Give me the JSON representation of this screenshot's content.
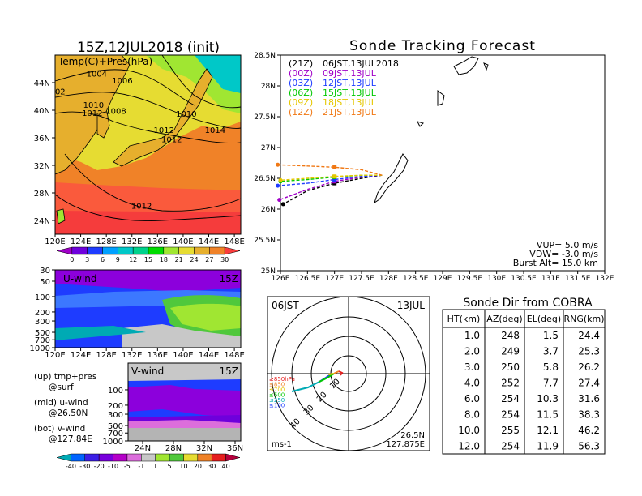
{
  "left_map": {
    "title": "15Z,12JUL2018 (init)",
    "field_label": "Temp(C)+Pres(hPa)",
    "lon_ticks": [
      "120E",
      "124E",
      "128E",
      "132E",
      "136E",
      "140E",
      "144E",
      "148E"
    ],
    "lat_ticks": [
      "24N",
      "28N",
      "32N",
      "36N",
      "40N",
      "44N"
    ],
    "isobar_labels": [
      {
        "text": "1004",
        "lon": 126.5,
        "lat": 45.0
      },
      {
        "text": "1006",
        "lon": 130.5,
        "lat": 44.0
      },
      {
        "text": "02",
        "lon": 120.8,
        "lat": 42.4
      },
      {
        "text": "1010",
        "lon": 126.0,
        "lat": 40.5
      },
      {
        "text": "1012",
        "lon": 125.8,
        "lat": 39.3
      },
      {
        "text": "1008",
        "lon": 129.5,
        "lat": 39.6
      },
      {
        "text": "1010",
        "lon": 140.5,
        "lat": 39.2
      },
      {
        "text": "1014",
        "lon": 145.0,
        "lat": 36.8
      },
      {
        "text": "1012",
        "lon": 137.0,
        "lat": 36.8
      },
      {
        "text": "1012",
        "lon": 138.2,
        "lat": 35.5
      },
      {
        "text": "1012",
        "lon": 133.5,
        "lat": 25.8
      }
    ],
    "colorbar_ticks": [
      "0",
      "3",
      "6",
      "9",
      "12",
      "15",
      "18",
      "21",
      "24",
      "27",
      "30"
    ],
    "colors": [
      "#a000c8",
      "#6e00dc",
      "#1e3cff",
      "#00a0ff",
      "#00c8c8",
      "#00d28c",
      "#00dc00",
      "#a0e632",
      "#e6dc32",
      "#e6af2d",
      "#f08228",
      "#fa3c3c"
    ]
  },
  "u_panel": {
    "label": "U-wind",
    "time": "15Z",
    "pres_ticks": [
      "30",
      "50",
      "100",
      "200",
      "300",
      "500",
      "700",
      "1000"
    ],
    "lon_ticks": [
      "120E",
      "124E",
      "128E",
      "132E",
      "136E",
      "140E",
      "144E",
      "148E"
    ]
  },
  "v_panel": {
    "label": "V-wind",
    "time": "15Z",
    "pres_ticks": [
      "100",
      "200",
      "300",
      "500",
      "700",
      "1000"
    ],
    "lat_ticks": [
      "24N",
      "28N",
      "32N",
      "36N"
    ]
  },
  "legend_notes": {
    "up": "(up) tmp+pres",
    "up2": "@surf",
    "mid": "(mid) u-wind",
    "mid2": "@26.50N",
    "bot": "(bot) v-wind",
    "bot2": "@127.84E"
  },
  "wind_colorbar": {
    "ticks": [
      "-40",
      "-30",
      "-20",
      "-10",
      "-5",
      "-1",
      "1",
      "5",
      "10",
      "20",
      "30",
      "40"
    ],
    "colors": [
      "#00aab4",
      "#0064ff",
      "#3c1ee6",
      "#7800dc",
      "#b400c8",
      "#dc6edc",
      "#c8c8c8",
      "#a0e632",
      "#50c83c",
      "#e6dc32",
      "#f08228",
      "#e61e1e",
      "#b4003c"
    ]
  },
  "tracking": {
    "title": "Sonde Tracking Forecast",
    "lon_ticks": [
      "126E",
      "126.5E",
      "127E",
      "127.5E",
      "128E",
      "128.5E",
      "129E",
      "129.5E",
      "130E",
      "130.5E",
      "131E",
      "131.5E",
      "132E"
    ],
    "lat_ticks": [
      "25N",
      "25.5N",
      "26N",
      "26.5N",
      "27N",
      "27.5N",
      "28N",
      "28.5N"
    ],
    "legend": [
      {
        "utc": "(21Z)",
        "jst": "06JST,13JUL2018",
        "color": "#000000"
      },
      {
        "utc": "(00Z)",
        "jst": "09JST,13JUL",
        "color": "#a000c8"
      },
      {
        "utc": "(03Z)",
        "jst": "12JST,13JUL",
        "color": "#1e3cff"
      },
      {
        "utc": "(06Z)",
        "jst": "15JST,13JUL",
        "color": "#00c800"
      },
      {
        "utc": "(09Z)",
        "jst": "18JST,13JUL",
        "color": "#e6c800"
      },
      {
        "utc": "(12Z)",
        "jst": "21JST,13JUL",
        "color": "#f07814"
      }
    ],
    "params": {
      "vup": "VUP= 5.0 m/s",
      "vdw": "VDW= -3.0 m/s",
      "burst": "Burst Alt= 15.0 km"
    }
  },
  "chart_data": [
    {
      "type": "line",
      "title": "Sonde Tracking Forecast",
      "xlim": [
        126,
        132
      ],
      "ylim": [
        25,
        28.5
      ],
      "series": [
        {
          "name": "06JST,13JUL2018",
          "color": "#000000",
          "x": [
            127.88,
            127.5,
            127.0,
            126.5,
            126.05
          ],
          "y": [
            26.55,
            26.5,
            26.42,
            26.3,
            26.08
          ]
        },
        {
          "name": "09JST,13JUL",
          "color": "#a000c8",
          "x": [
            127.88,
            127.5,
            127.0,
            126.5,
            125.98
          ],
          "y": [
            26.55,
            26.52,
            26.45,
            26.32,
            26.15
          ]
        },
        {
          "name": "12JST,13JUL",
          "color": "#1e3cff",
          "x": [
            127.88,
            127.5,
            127.0,
            126.5,
            125.95
          ],
          "y": [
            26.55,
            26.53,
            26.48,
            26.42,
            26.38
          ]
        },
        {
          "name": "15JST,13JUL",
          "color": "#00c800",
          "x": [
            127.88,
            127.5,
            127.0,
            126.5,
            126.0
          ],
          "y": [
            26.55,
            26.55,
            26.52,
            26.48,
            26.45
          ]
        },
        {
          "name": "18JST,13JUL",
          "color": "#e6c800",
          "x": [
            127.88,
            127.5,
            127.0,
            126.5,
            126.0
          ],
          "y": [
            26.55,
            26.55,
            26.53,
            26.5,
            26.47
          ]
        },
        {
          "name": "21JST,13JUL",
          "color": "#f07814",
          "x": [
            127.88,
            127.5,
            127.0,
            126.5,
            125.95
          ],
          "y": [
            26.55,
            26.64,
            26.68,
            26.7,
            26.72
          ]
        }
      ]
    },
    {
      "type": "table",
      "title": "Sonde Dir from COBRA",
      "columns": [
        "HT(km)",
        "AZ(deg)",
        "EL(deg)",
        "RNG(km)"
      ],
      "rows": [
        [
          "1.0",
          "248",
          "1.5",
          "24.4"
        ],
        [
          "2.0",
          "249",
          "3.7",
          "25.3"
        ],
        [
          "3.0",
          "250",
          "5.8",
          "26.2"
        ],
        [
          "4.0",
          "252",
          "7.7",
          "27.4"
        ],
        [
          "6.0",
          "254",
          "10.3",
          "31.6"
        ],
        [
          "8.0",
          "254",
          "11.5",
          "38.3"
        ],
        [
          "10.0",
          "255",
          "12.1",
          "46.2"
        ],
        [
          "12.0",
          "254",
          "11.9",
          "56.3"
        ]
      ]
    }
  ],
  "polar": {
    "time_left": "06JST",
    "time_right": "13JUL",
    "loc_lat": "26.5N",
    "loc_lon": "127.875E",
    "units": "ms-1",
    "ring_labels": [
      "10",
      "20",
      "30",
      "40"
    ],
    "levels": [
      {
        "label": "≥850hPa",
        "color": "#e61e1e"
      },
      {
        "label": "≤850",
        "color": "#f08228"
      },
      {
        "label": "≤700",
        "color": "#e6c800"
      },
      {
        "label": "≤500",
        "color": "#00c800"
      },
      {
        "label": "≤250",
        "color": "#00aab4"
      },
      {
        "label": "≤100",
        "color": "#1e3cff"
      }
    ]
  }
}
